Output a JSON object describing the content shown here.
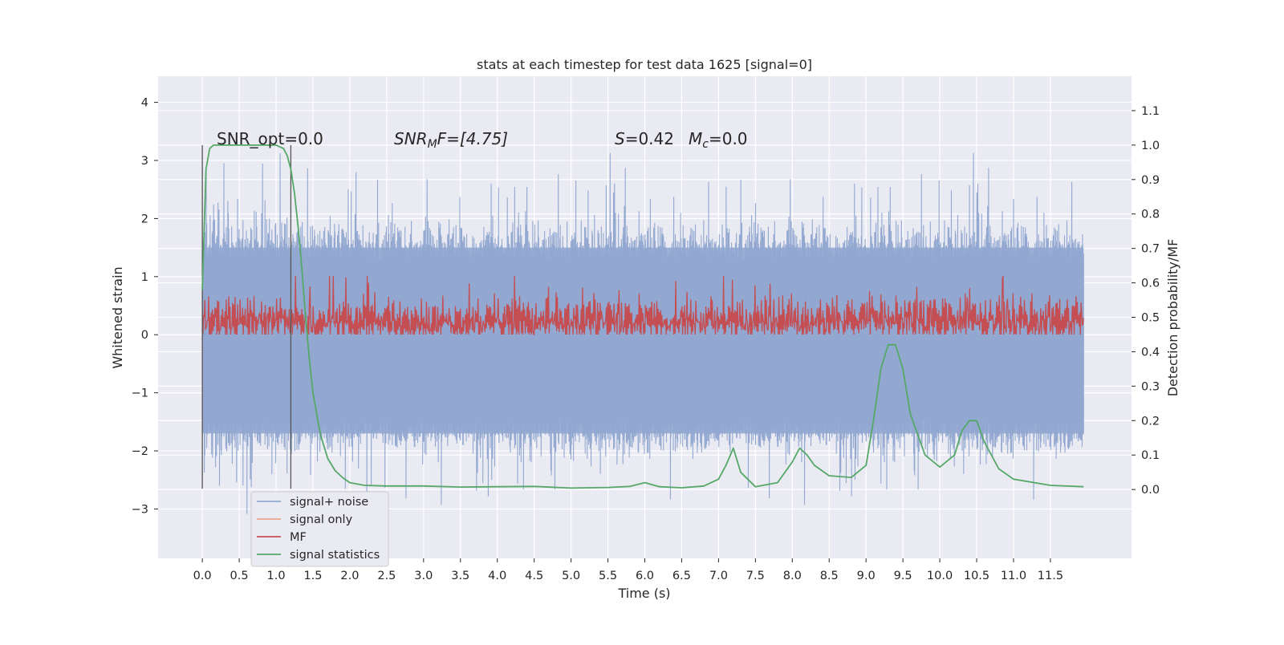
{
  "chart_data": {
    "type": "line",
    "title": "stats at each timestep for test data 1625 [signal=0]",
    "xlabel": "Time (s)",
    "ylabel_left": "Whitened strain",
    "ylabel_right": "Detection probability/MF",
    "xlim": [
      -0.6,
      12.6
    ],
    "ylim_left": [
      -3.85,
      4.45
    ],
    "ylim_right": [
      -0.2,
      1.2
    ],
    "grid": true,
    "x_ticks": [
      "0.0",
      "0.5",
      "1.0",
      "1.5",
      "2.0",
      "2.5",
      "3.0",
      "3.5",
      "4.0",
      "4.5",
      "5.0",
      "5.5",
      "6.0",
      "6.5",
      "7.0",
      "7.5",
      "8.0",
      "8.5",
      "9.0",
      "9.5",
      "10.0",
      "10.5",
      "11.0",
      "11.5"
    ],
    "y_ticks_left": [
      "−3",
      "−2",
      "−1",
      "0",
      "1",
      "2",
      "3",
      "4"
    ],
    "y_ticks_right": [
      "0.0",
      "0.1",
      "0.2",
      "0.3",
      "0.4",
      "0.5",
      "0.6",
      "0.7",
      "0.8",
      "0.9",
      "1.0",
      "1.1"
    ],
    "annotations": {
      "snr_opt": "SNR_opt=0.0",
      "snr_mf_prefix": "SNR",
      "snr_mf_sub": "M",
      "snr_mf_suffix": "F=[4.75]",
      "s_var": "S",
      "s_val": "=0.42",
      "mc_var": "M",
      "mc_sub": "c",
      "mc_val": "=0.0"
    },
    "vertical_markers": [
      0.0,
      1.2
    ],
    "legend": {
      "placement": "lower-left",
      "entries": [
        "signal+ noise",
        "signal only",
        "MF",
        "signal statistics"
      ]
    },
    "colors": {
      "noise": "#92a8d1",
      "signal_only": "#eda48a",
      "mf": "#c44e52",
      "stats": "#55a868",
      "background": "#eaeaf2",
      "grid": "#ffffff"
    },
    "series": [
      {
        "name": "signal statistics",
        "axis": "right",
        "x": [
          0.0,
          0.05,
          0.1,
          0.15,
          0.2,
          0.3,
          0.5,
          0.7,
          0.9,
          1.0,
          1.1,
          1.15,
          1.2,
          1.25,
          1.3,
          1.35,
          1.4,
          1.45,
          1.5,
          1.6,
          1.7,
          1.8,
          1.9,
          2.0,
          2.2,
          2.5,
          3.0,
          3.5,
          4.0,
          4.5,
          5.0,
          5.5,
          5.8,
          6.0,
          6.2,
          6.5,
          6.8,
          7.0,
          7.1,
          7.2,
          7.3,
          7.5,
          7.8,
          8.0,
          8.1,
          8.2,
          8.3,
          8.5,
          8.8,
          9.0,
          9.1,
          9.2,
          9.3,
          9.4,
          9.5,
          9.6,
          9.8,
          10.0,
          10.2,
          10.3,
          10.4,
          10.5,
          10.6,
          10.8,
          11.0,
          11.5,
          11.95
        ],
        "y": [
          0.58,
          0.93,
          0.99,
          1.0,
          1.0,
          1.0,
          1.0,
          1.0,
          1.0,
          1.0,
          0.99,
          0.97,
          0.93,
          0.86,
          0.76,
          0.64,
          0.5,
          0.38,
          0.28,
          0.16,
          0.09,
          0.055,
          0.035,
          0.02,
          0.012,
          0.01,
          0.01,
          0.007,
          0.008,
          0.009,
          0.004,
          0.006,
          0.009,
          0.02,
          0.008,
          0.005,
          0.01,
          0.03,
          0.07,
          0.12,
          0.05,
          0.008,
          0.02,
          0.08,
          0.12,
          0.1,
          0.07,
          0.04,
          0.035,
          0.07,
          0.2,
          0.35,
          0.42,
          0.42,
          0.35,
          0.22,
          0.1,
          0.065,
          0.1,
          0.17,
          0.2,
          0.2,
          0.14,
          0.06,
          0.03,
          0.012,
          0.008
        ]
      }
    ]
  }
}
